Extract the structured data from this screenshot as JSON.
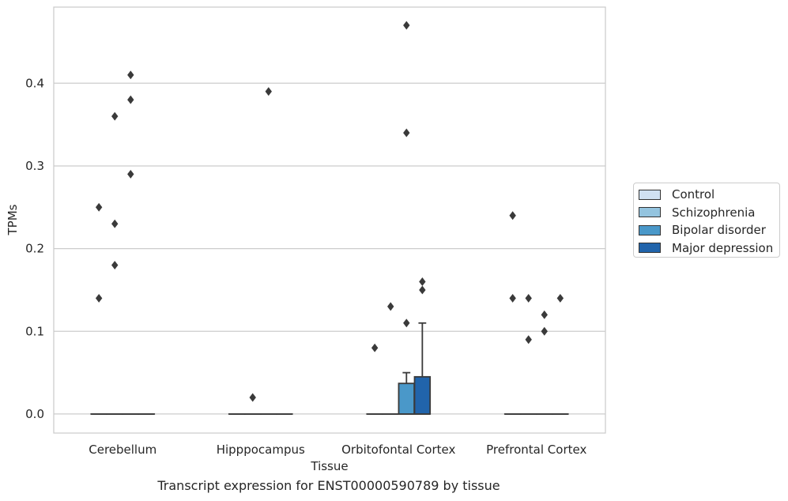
{
  "chart_data": {
    "type": "box",
    "title": "",
    "caption": "Transcript expression for ENST00000590789 by tissue",
    "xlabel": "Tissue",
    "ylabel": "TPMs",
    "ylim": [
      -0.023,
      0.492
    ],
    "yticks": [
      "0.0",
      "0.1",
      "0.2",
      "0.3",
      "0.4"
    ],
    "ytick_values": [
      0.0,
      0.1,
      0.2,
      0.3,
      0.4
    ],
    "grid": "horizontal",
    "legend_position": "right",
    "categories": [
      "Cerebellum",
      "Hipppocampus",
      "Orbitofontal Cortex",
      "Prefrontal Cortex"
    ],
    "series": [
      {
        "name": "Control",
        "color": "#d0e1f2",
        "boxes": [
          {
            "q1": 0,
            "median": 0,
            "q3": 0,
            "whisker_low": 0,
            "whisker_high": 0,
            "outliers": [
              0.14,
              0.25
            ]
          },
          {
            "q1": 0,
            "median": 0,
            "q3": 0,
            "whisker_low": 0,
            "whisker_high": 0,
            "outliers": []
          },
          {
            "q1": 0,
            "median": 0,
            "q3": 0,
            "whisker_low": 0,
            "whisker_high": 0,
            "outliers": [
              0.08
            ]
          },
          {
            "q1": 0,
            "median": 0,
            "q3": 0,
            "whisker_low": 0,
            "whisker_high": 0,
            "outliers": [
              0.14,
              0.24
            ]
          }
        ]
      },
      {
        "name": "Schizophrenia",
        "color": "#94c4df",
        "boxes": [
          {
            "q1": 0,
            "median": 0,
            "q3": 0,
            "whisker_low": 0,
            "whisker_high": 0,
            "outliers": [
              0.18,
              0.23,
              0.36
            ]
          },
          {
            "q1": 0,
            "median": 0,
            "q3": 0,
            "whisker_low": 0,
            "whisker_high": 0,
            "outliers": [
              0.02
            ]
          },
          {
            "q1": 0,
            "median": 0,
            "q3": 0,
            "whisker_low": 0,
            "whisker_high": 0,
            "outliers": [
              0.13
            ]
          },
          {
            "q1": 0,
            "median": 0,
            "q3": 0,
            "whisker_low": 0,
            "whisker_high": 0,
            "outliers": [
              0.09,
              0.14
            ]
          }
        ]
      },
      {
        "name": "Bipolar disorder",
        "color": "#4a98c9",
        "boxes": [
          {
            "q1": 0,
            "median": 0,
            "q3": 0,
            "whisker_low": 0,
            "whisker_high": 0,
            "outliers": [
              0.29,
              0.38,
              0.41
            ]
          },
          {
            "q1": 0,
            "median": 0,
            "q3": 0,
            "whisker_low": 0,
            "whisker_high": 0,
            "outliers": [
              0.39
            ]
          },
          {
            "q1": 0,
            "median": 0,
            "q3": 0.037,
            "whisker_low": 0,
            "whisker_high": 0.05,
            "outliers": [
              0.11,
              0.34,
              0.47
            ]
          },
          {
            "q1": 0,
            "median": 0,
            "q3": 0,
            "whisker_low": 0,
            "whisker_high": 0,
            "outliers": [
              0.1,
              0.12
            ]
          }
        ]
      },
      {
        "name": "Major depression",
        "color": "#2164ab",
        "boxes": [
          {
            "q1": 0,
            "median": 0,
            "q3": 0,
            "whisker_low": 0,
            "whisker_high": 0,
            "outliers": []
          },
          {
            "q1": 0,
            "median": 0,
            "q3": 0,
            "whisker_low": 0,
            "whisker_high": 0,
            "outliers": []
          },
          {
            "q1": 0,
            "median": 0,
            "q3": 0.045,
            "whisker_low": 0,
            "whisker_high": 0.11,
            "outliers": [
              0.15,
              0.16
            ]
          },
          {
            "q1": 0,
            "median": 0,
            "q3": 0,
            "whisker_low": 0,
            "whisker_high": 0,
            "outliers": [
              0.14
            ]
          }
        ]
      }
    ]
  }
}
